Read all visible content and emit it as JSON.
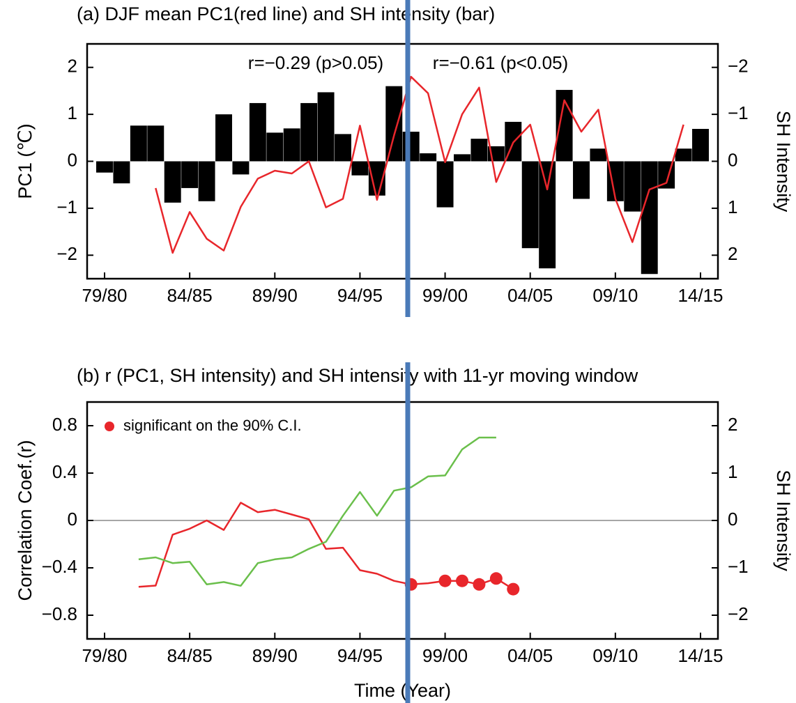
{
  "chart_data": [
    {
      "type": "combo",
      "title": "(a) DJF mean PC1(red line) and SH intensity (bar)",
      "ylabel": "PC1 (℃)",
      "ylabel_color": "#e8262b",
      "y2label": "SH Intensity",
      "y2label_color": "#000000",
      "categories": [
        "79/80",
        null,
        null,
        null,
        null,
        "84/85",
        null,
        null,
        null,
        null,
        "89/90",
        null,
        null,
        null,
        null,
        "94/95",
        null,
        null,
        null,
        null,
        "99/00",
        null,
        null,
        null,
        null,
        "04/05",
        null,
        null,
        null,
        null,
        "09/10",
        null,
        null,
        null,
        null,
        "14/15"
      ],
      "ylim": [
        -2.5,
        2.5
      ],
      "yticks": [
        2,
        1,
        0,
        {
          "value": -1,
          "label": "−1"
        },
        {
          "value": -2,
          "label": "−2"
        }
      ],
      "y2lim": [
        2.5,
        -2.5
      ],
      "y2ticks": [
        {
          "value": -2,
          "label": "−2"
        },
        {
          "value": -1,
          "label": "−1"
        },
        0,
        1,
        2
      ],
      "series": [
        {
          "type": "bar",
          "axis": "y2",
          "color": "#000000",
          "values": [
            0.24,
            0.47,
            -0.76,
            -0.76,
            0.88,
            0.57,
            0.85,
            -1.0,
            0.28,
            -1.24,
            -0.61,
            -0.7,
            -1.24,
            -1.47,
            -0.58,
            0.3,
            0.73,
            -1.6,
            -0.63,
            -0.17,
            0.98,
            -0.15,
            -0.48,
            -0.32,
            -0.84,
            1.85,
            2.28,
            -1.52,
            0.8,
            -0.27,
            0.85,
            1.07,
            2.4,
            0.58,
            -0.27,
            -0.69
          ]
        },
        {
          "type": "line",
          "color": "#e8262b",
          "values": [
            null,
            null,
            null,
            -0.57,
            -1.95,
            -1.08,
            -1.65,
            -1.9,
            -0.97,
            -0.37,
            -0.2,
            -0.26,
            0,
            -0.98,
            -0.8,
            0.76,
            -0.82,
            0.55,
            1.8,
            1.45,
            -0.02,
            1.0,
            1.57,
            -0.44,
            0.4,
            0.78,
            -0.6,
            1.3,
            0.63,
            1.1,
            -0.8,
            -1.72,
            -0.6,
            -0.46,
            0.78,
            null
          ]
        }
      ],
      "annotations": [
        "r=−0.29 (p>0.05)",
        "r=−0.61 (p<0.05)"
      ]
    },
    {
      "type": "combo",
      "title": "(b) r (PC1, SH intensity) and SH intensity with 11-yr moving window",
      "xlabel": "Time (Year)",
      "ylabel": "Correlation Coef.(r)",
      "ylabel_color": "#e8262b",
      "y2label": "SH Intensity",
      "y2label_color": "#6abf4b",
      "categories": [
        "79/80",
        null,
        null,
        null,
        null,
        "84/85",
        null,
        null,
        null,
        null,
        "89/90",
        null,
        null,
        null,
        null,
        "94/95",
        null,
        null,
        null,
        null,
        "99/00",
        null,
        null,
        null,
        null,
        "04/05",
        null,
        null,
        null,
        null,
        "09/10",
        null,
        null,
        null,
        null,
        "14/15"
      ],
      "ylim": [
        -1,
        1
      ],
      "yticks": [
        0.8,
        0.4,
        0,
        {
          "value": -0.4,
          "label": "−0.4"
        },
        {
          "value": -0.8,
          "label": "−0.8"
        }
      ],
      "y2lim": [
        -2.5,
        2.5
      ],
      "y2ticks": [
        2,
        1,
        0,
        {
          "value": -1,
          "label": "−1"
        },
        {
          "value": -2,
          "label": "−2"
        }
      ],
      "zero_line": true,
      "legend": "upper left",
      "series": [
        {
          "type": "line",
          "color": "#e8262b",
          "values": [
            null,
            null,
            -0.56,
            -0.55,
            -0.12,
            -0.07,
            0.0,
            -0.08,
            0.15,
            0.07,
            0.09,
            0.05,
            0.01,
            -0.24,
            -0.23,
            -0.42,
            -0.45,
            -0.51,
            -0.54,
            -0.53,
            -0.51,
            -0.51,
            -0.54,
            -0.49,
            -0.58,
            null,
            null,
            null,
            null,
            null,
            null,
            null,
            null,
            null,
            null,
            null
          ]
        },
        {
          "type": "line",
          "axis": "y2",
          "color": "#6abf4b",
          "values": [
            null,
            null,
            -0.82,
            -0.78,
            -0.9,
            -0.87,
            -1.35,
            -1.3,
            -1.38,
            -0.9,
            -0.82,
            -0.78,
            -0.6,
            -0.45,
            0.1,
            0.6,
            0.1,
            0.63,
            0.7,
            0.93,
            0.95,
            1.5,
            1.75,
            1.75,
            null,
            null,
            null,
            null,
            null,
            null,
            null,
            null,
            null,
            null,
            null,
            null
          ]
        },
        {
          "type": "scatter",
          "name": "significant on the 90% C.I.",
          "color": "#e8262b",
          "values": [
            null,
            null,
            null,
            null,
            null,
            null,
            null,
            null,
            null,
            null,
            null,
            null,
            null,
            null,
            null,
            null,
            null,
            null,
            -0.54,
            null,
            -0.51,
            -0.51,
            -0.54,
            -0.49,
            -0.58,
            null,
            null,
            null,
            null,
            null,
            null,
            null,
            null,
            null,
            null,
            null
          ]
        }
      ]
    }
  ]
}
